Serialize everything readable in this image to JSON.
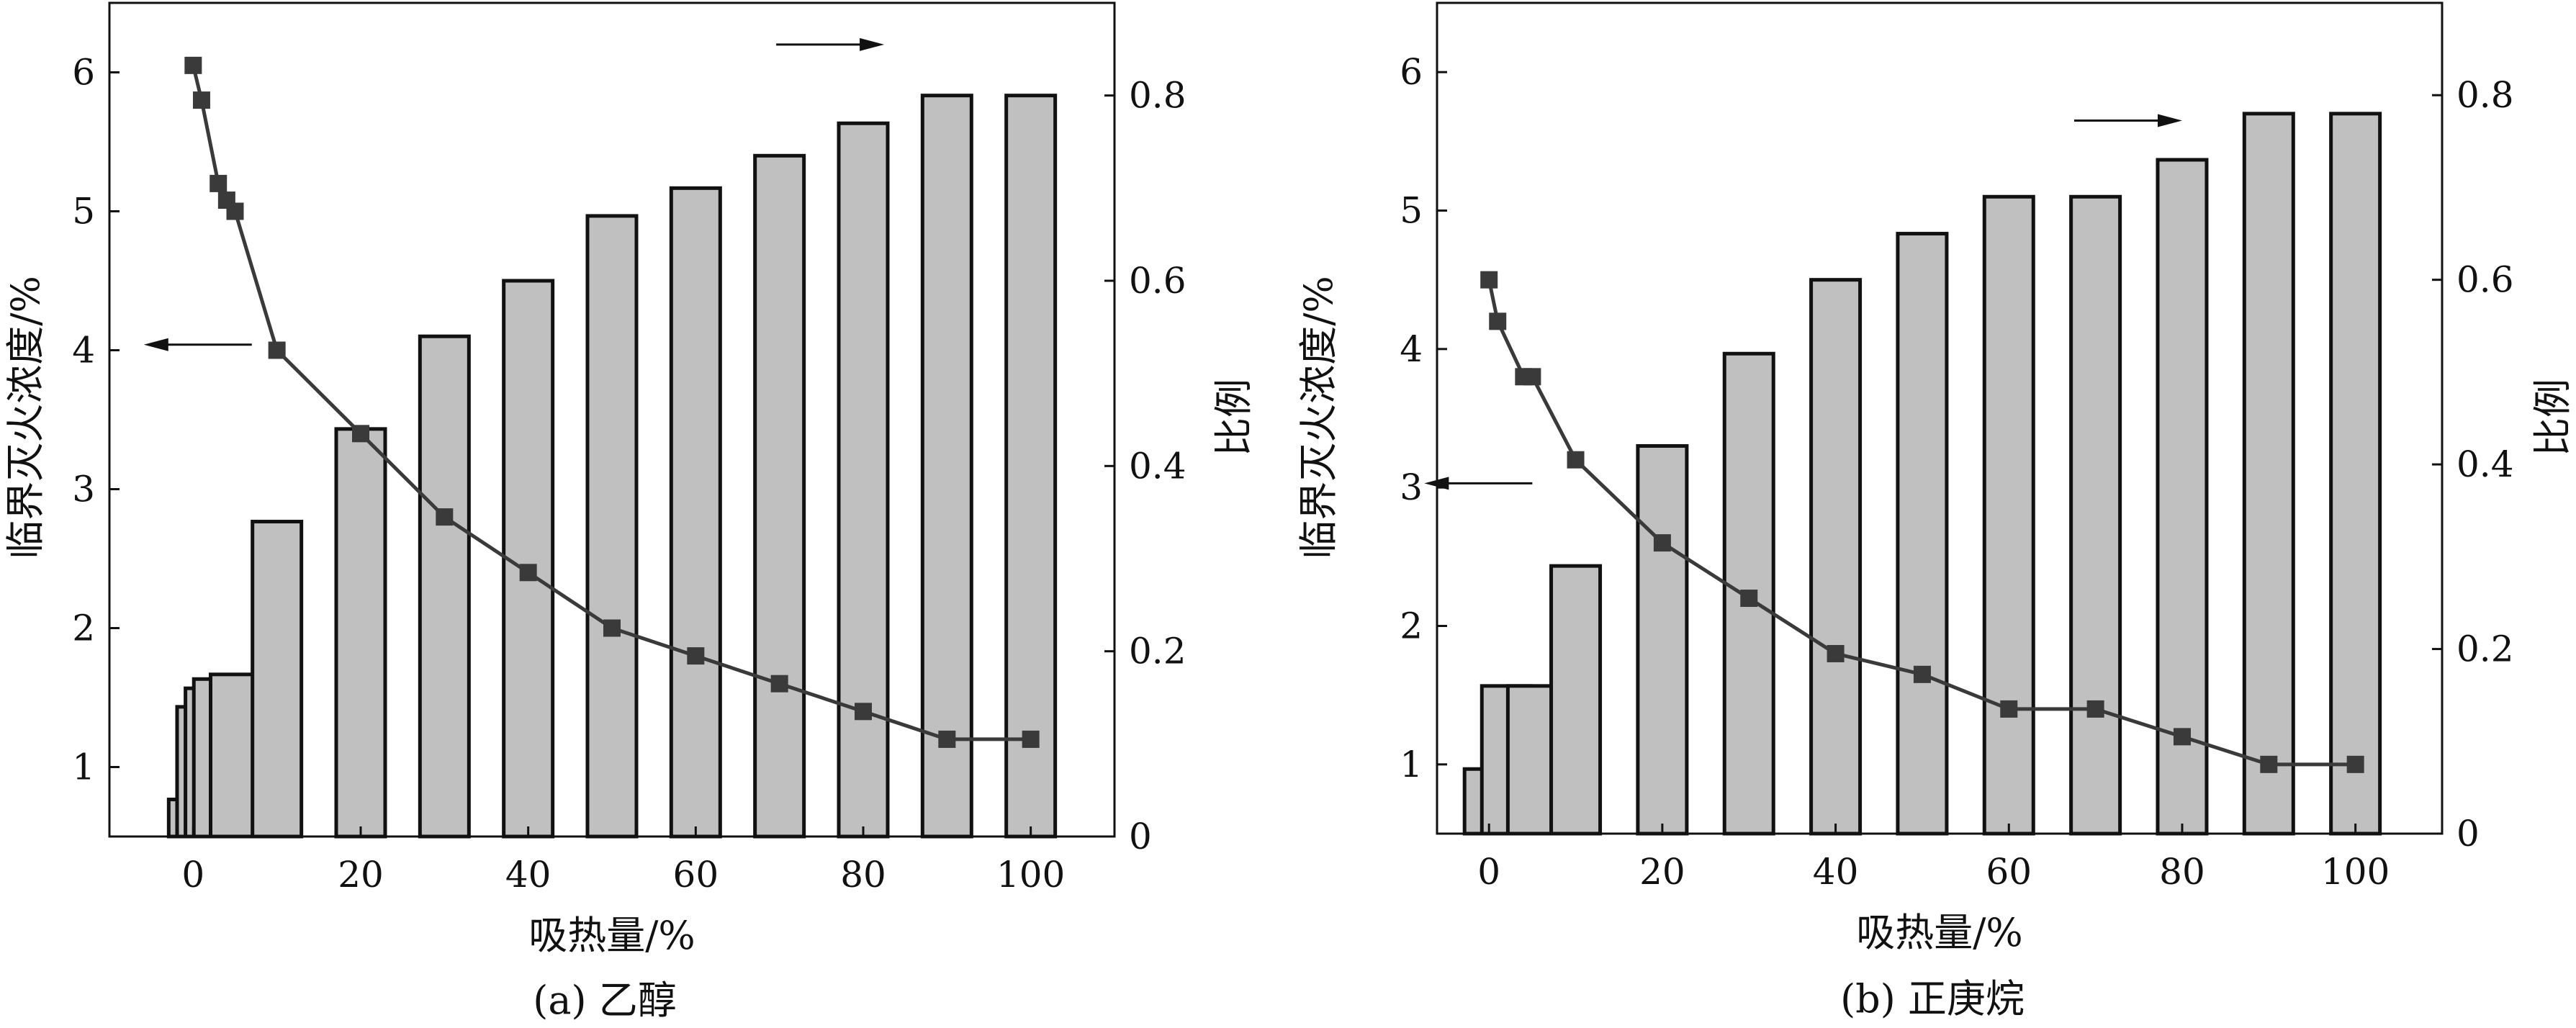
{
  "chart_data": [
    {
      "type": "bar+line",
      "caption": "(a) 乙醇",
      "xlabel": "吸热量/%",
      "ylabel_left": "临界灭火浓度/%",
      "ylabel_right": "比例",
      "xlim": [
        -10,
        110
      ],
      "ylim_left": [
        0.5,
        6.5
      ],
      "ylim_right": [
        0,
        0.9
      ],
      "x_ticks": [
        0,
        20,
        40,
        60,
        80,
        100
      ],
      "y_left_ticks": [
        1,
        2,
        3,
        4,
        5,
        6
      ],
      "y_right_ticks": [
        0,
        0.2,
        0.4,
        0.6,
        0.8
      ],
      "y_right_tick_labels": [
        "0",
        "0.2",
        "0.4",
        "0.6",
        "0.8"
      ],
      "grid": false,
      "bar_series": {
        "axis": "right",
        "x": [
          0,
          1,
          2,
          3,
          5,
          10,
          20,
          30,
          40,
          50,
          60,
          70,
          80,
          90,
          100
        ],
        "values": [
          0.04,
          0.14,
          0.16,
          0.17,
          0.175,
          0.34,
          0.44,
          0.54,
          0.6,
          0.67,
          0.7,
          0.735,
          0.77,
          0.8,
          0.8
        ]
      },
      "line_series": {
        "axis": "left",
        "x": [
          0,
          1,
          3,
          4,
          5,
          10,
          20,
          30,
          40,
          50,
          60,
          70,
          80,
          90,
          100
        ],
        "values": [
          6.05,
          5.8,
          5.2,
          5.08,
          5.0,
          4.0,
          3.4,
          2.8,
          2.4,
          2.0,
          1.8,
          1.6,
          1.4,
          1.2,
          1.2
        ]
      },
      "annotations": [
        {
          "type": "arrow",
          "direction": "left",
          "at": [
            7,
            4.04
          ],
          "refers_to": "left-axis"
        },
        {
          "type": "arrow",
          "direction": "right",
          "at": [
            82.5,
            6.2
          ],
          "refers_to": "right-axis"
        }
      ]
    },
    {
      "type": "bar+line",
      "caption": "(b) 正庚烷",
      "xlabel": "吸热量/%",
      "ylabel_left": "临界灭火浓度/%",
      "ylabel_right": "比例",
      "xlim": [
        -6,
        110
      ],
      "ylim_left": [
        0.5,
        6.5
      ],
      "ylim_right": [
        0,
        0.9
      ],
      "x_ticks": [
        0,
        20,
        40,
        60,
        80,
        100
      ],
      "y_left_ticks": [
        1,
        2,
        3,
        4,
        5,
        6
      ],
      "y_right_ticks": [
        0,
        0.2,
        0.4,
        0.6,
        0.8
      ],
      "y_right_tick_labels": [
        "0",
        "0.2",
        "0.4",
        "0.6",
        "0.8"
      ],
      "grid": false,
      "bar_series": {
        "axis": "right",
        "x": [
          0,
          2,
          5,
          10,
          20,
          30,
          40,
          50,
          60,
          70,
          80,
          90,
          100
        ],
        "values": [
          0.07,
          0.16,
          0.16,
          0.29,
          0.42,
          0.52,
          0.6,
          0.65,
          0.69,
          0.69,
          0.73,
          0.78,
          0.78
        ]
      },
      "line_series": {
        "axis": "left",
        "x": [
          0,
          1,
          4,
          5,
          10,
          20,
          30,
          40,
          50,
          60,
          70,
          80,
          90,
          100
        ],
        "values": [
          4.5,
          4.2,
          3.8,
          3.8,
          3.2,
          2.6,
          2.2,
          1.8,
          1.65,
          1.4,
          1.4,
          1.2,
          1.0,
          1.0
        ]
      },
      "annotations": [
        {
          "type": "arrow",
          "direction": "left",
          "at": [
            5,
            3.03
          ],
          "refers_to": "left-axis"
        },
        {
          "type": "arrow",
          "direction": "right",
          "at": [
            80,
            5.65
          ],
          "refers_to": "right-axis"
        }
      ]
    }
  ],
  "colors": {
    "bar_fill": "#c0c0c0",
    "bar_stroke": "#111111",
    "line": "#3a3a3a",
    "marker": "#3a3a3a",
    "axis": "#111111"
  }
}
